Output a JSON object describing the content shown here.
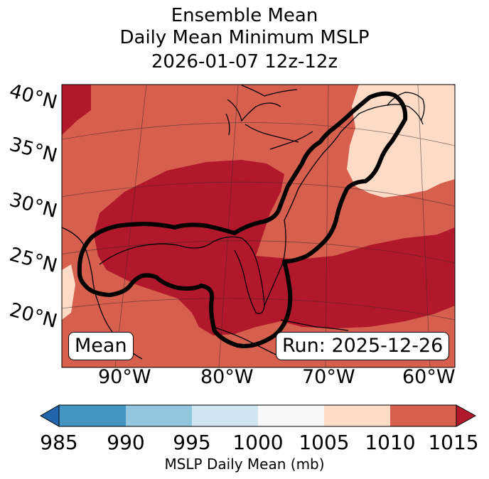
{
  "title": {
    "line1": "Ensemble Mean",
    "line2": "Daily Mean Minimum MSLP",
    "line3": "2026-01-07 12z-12z"
  },
  "map": {
    "lat_labels": [
      "40°N",
      "35°N",
      "30°N",
      "25°N",
      "20°N"
    ],
    "lon_labels": [
      "90°W",
      "80°W",
      "70°W",
      "60°W"
    ],
    "badge_left": "Mean",
    "badge_right": "Run: 2025-12-26",
    "field_colors": {
      "1005-1010": "#fddbc7",
      "1010-1015": "#d6604d",
      "above-1015": "#b2182b"
    }
  },
  "colorbar": {
    "ticks": [
      "985",
      "990",
      "995",
      "1000",
      "1005",
      "1010",
      "1015"
    ],
    "colors": [
      "#4393c3",
      "#92c5de",
      "#d1e5f0",
      "#f7f7f7",
      "#fddbc7",
      "#d6604d"
    ],
    "under_color": "#2166ac",
    "over_color": "#b2182b",
    "label": "MSLP Daily Mean (mb)"
  }
}
